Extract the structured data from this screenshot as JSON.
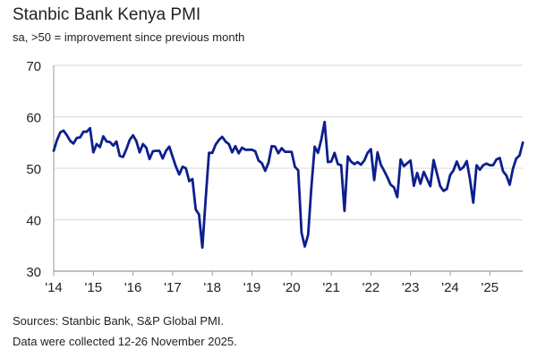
{
  "chart_data": {
    "type": "line",
    "title": "Stanbic Bank Kenya PMI",
    "subtitle": "sa, >50 = improvement since previous month",
    "xlabel": "",
    "ylabel": "",
    "ylim": [
      30,
      70
    ],
    "yticks": [
      "30",
      "40",
      "50",
      "60",
      "70"
    ],
    "xticks": [
      "'14",
      "'15",
      "'16",
      "'17",
      "'18",
      "'19",
      "'20",
      "'21",
      "'22",
      "'23",
      "'24",
      "'25"
    ],
    "x_start": "2014-01",
    "x_end": "2025-11",
    "frequency": "monthly",
    "grid": "horizontal",
    "line_color": "#0d1f8c",
    "values": [
      53.4,
      55.5,
      57.0,
      57.3,
      56.4,
      55.3,
      54.8,
      55.9,
      56.0,
      57.1,
      57.1,
      57.8,
      53.1,
      54.7,
      54.1,
      56.2,
      55.2,
      55.1,
      54.4,
      55.2,
      52.4,
      52.2,
      53.7,
      55.5,
      56.4,
      55.3,
      53.1,
      54.7,
      54.0,
      51.8,
      53.3,
      53.4,
      53.4,
      51.9,
      53.4,
      54.2,
      52.2,
      50.3,
      48.8,
      50.3,
      50.0,
      47.5,
      47.9,
      42.0,
      41.0,
      34.6,
      44.0,
      53.0,
      53.0,
      54.6,
      55.5,
      56.1,
      55.2,
      54.7,
      53.1,
      54.3,
      52.9,
      54.0,
      53.6,
      53.6,
      53.6,
      53.3,
      51.5,
      51.0,
      49.5,
      51.1,
      54.3,
      54.2,
      52.9,
      53.9,
      53.2,
      53.2,
      53.2,
      50.3,
      49.6,
      37.5,
      34.8,
      37.1,
      46.3,
      54.2,
      53.0,
      55.6,
      59.0,
      51.2,
      51.3,
      53.0,
      50.8,
      50.6,
      41.7,
      52.3,
      51.3,
      50.8,
      51.2,
      50.7,
      51.5,
      53.0,
      53.7,
      47.7,
      53.1,
      50.7,
      49.5,
      48.2,
      46.8,
      46.3,
      44.4,
      51.7,
      50.4,
      51.0,
      51.5,
      46.6,
      49.1,
      47.0,
      49.3,
      47.9,
      46.5,
      51.6,
      49.0,
      46.5,
      45.6,
      46.0,
      48.7,
      49.6,
      51.3,
      49.7,
      50.2,
      51.4,
      47.9,
      43.3,
      50.6,
      49.7,
      50.6,
      50.9,
      50.6,
      50.6,
      51.7,
      52.0,
      49.4,
      48.6,
      46.8,
      49.9,
      51.9,
      52.5,
      55.0
    ]
  },
  "footer": {
    "sources": "Sources: Stanbic Bank, S&P Global PMI.",
    "note": "Data were collected 12-26 November 2025."
  }
}
